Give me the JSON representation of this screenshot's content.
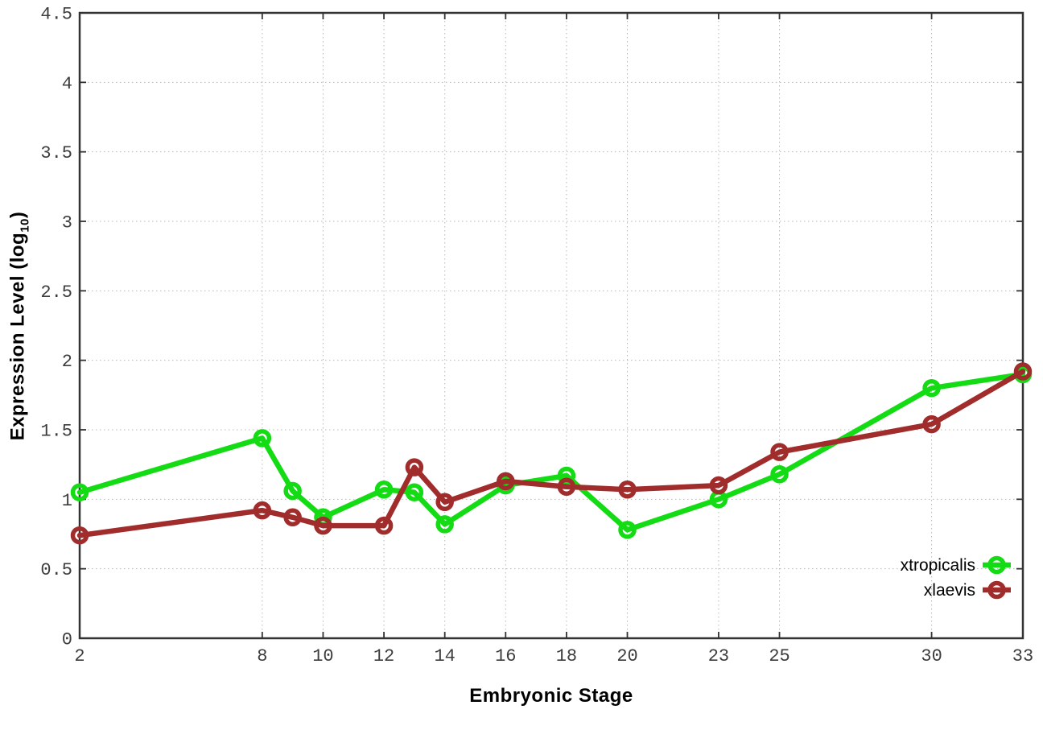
{
  "chart_data": {
    "type": "line",
    "title": "",
    "xlabel": "Embryonic Stage",
    "ylabel": "Expression Level (log10)",
    "ylabel_parts": {
      "prefix": "Expression Level (log",
      "sub": "10",
      "suffix": ")"
    },
    "xlim": [
      2,
      33
    ],
    "ylim": [
      0,
      4.5
    ],
    "grid": true,
    "x_ticks": [
      2,
      8,
      10,
      12,
      14,
      16,
      18,
      20,
      23,
      25,
      30,
      33
    ],
    "y_ticks": [
      0,
      0.5,
      1,
      1.5,
      2,
      2.5,
      3,
      3.5,
      4,
      4.5
    ],
    "y_tick_labels": [
      "0",
      "0.5",
      "1",
      "1.5",
      "2",
      "2.5",
      "3",
      "3.5",
      "4",
      "4.5"
    ],
    "x": [
      2,
      8,
      9,
      10,
      12,
      13,
      14,
      16,
      18,
      20,
      23,
      25,
      30,
      33
    ],
    "series": [
      {
        "name": "xtropicalis",
        "color": "#14dc14",
        "values": [
          1.05,
          1.44,
          1.06,
          0.87,
          1.07,
          1.05,
          0.82,
          1.1,
          1.17,
          0.78,
          1.0,
          1.18,
          1.8,
          1.9
        ]
      },
      {
        "name": "xlaevis",
        "color": "#a02c2c",
        "values": [
          0.74,
          0.92,
          0.87,
          0.81,
          0.81,
          1.23,
          0.98,
          1.13,
          1.09,
          1.07,
          1.1,
          1.34,
          1.54,
          1.92
        ]
      }
    ],
    "legend_position": "bottom-right",
    "colors": {
      "axis": "#333333",
      "tick_text": "#3d3d3d",
      "grid": "#b8b8b8",
      "background": "#ffffff",
      "label_text": "#000000"
    }
  }
}
